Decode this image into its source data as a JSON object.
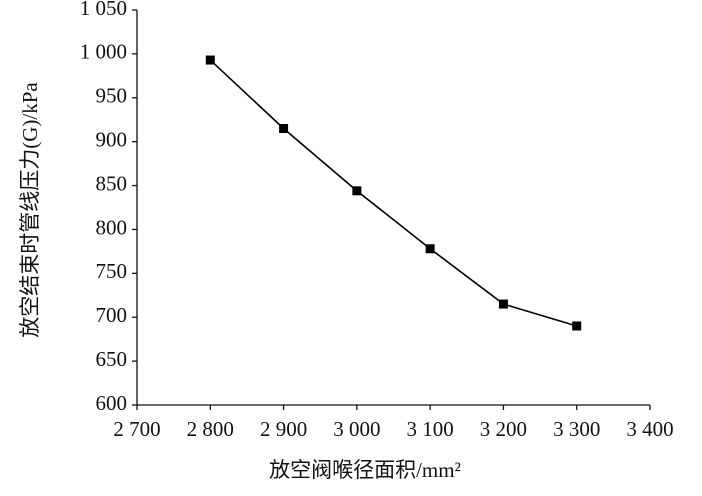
{
  "chart_data": {
    "type": "line",
    "x_label": "放空阀喉径面积/mm²",
    "y_label": "放空结束时管线压力(G)/kPa",
    "x": [
      2800,
      2900,
      3000,
      3100,
      3200,
      3300
    ],
    "values": [
      993,
      915,
      844,
      778,
      715,
      690
    ],
    "color": "#000000",
    "marker": "square",
    "xlim": [
      2700,
      3400
    ],
    "xticks": [
      {
        "value": 2700,
        "label": "2 700"
      },
      {
        "value": 2800,
        "label": "2 800"
      },
      {
        "value": 2900,
        "label": "2 900"
      },
      {
        "value": 3000,
        "label": "3 000"
      },
      {
        "value": 3100,
        "label": "3 100"
      },
      {
        "value": 3200,
        "label": "3 200"
      },
      {
        "value": 3300,
        "label": "3 300"
      },
      {
        "value": 3400,
        "label": "3 400"
      }
    ],
    "ylim": [
      600,
      1050
    ],
    "yticks": [
      600,
      650,
      700,
      750,
      800,
      850,
      900,
      950,
      {
        "value": 1000,
        "label": "1 000"
      },
      {
        "value": 1050,
        "label": "1 050"
      }
    ],
    "grid": false
  }
}
